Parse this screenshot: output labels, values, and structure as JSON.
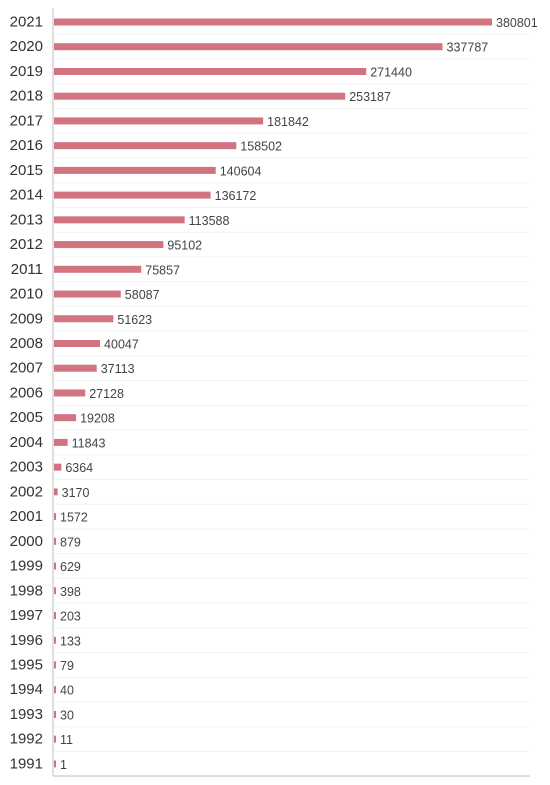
{
  "chart_data": {
    "type": "bar",
    "orientation": "horizontal",
    "categories": [
      "2021",
      "2020",
      "2019",
      "2018",
      "2017",
      "2016",
      "2015",
      "2014",
      "2013",
      "2012",
      "2011",
      "2010",
      "2009",
      "2008",
      "2007",
      "2006",
      "2005",
      "2004",
      "2003",
      "2002",
      "2001",
      "2000",
      "1999",
      "1998",
      "1997",
      "1996",
      "1995",
      "1994",
      "1993",
      "1992",
      "1991"
    ],
    "values": [
      380801,
      337787,
      271440,
      253187,
      181842,
      158502,
      140604,
      136172,
      113588,
      95102,
      75857,
      58087,
      51623,
      40047,
      37113,
      27128,
      19208,
      11843,
      6364,
      3170,
      1572,
      879,
      629,
      398,
      203,
      133,
      79,
      40,
      30,
      11,
      1
    ],
    "data_labels": [
      "380801",
      "337787",
      "271440",
      "253187",
      "181842",
      "158502",
      "140604",
      "136172",
      "113588",
      "95102",
      "75857",
      "58087",
      "51623",
      "40047",
      "37113",
      "27128",
      "19208",
      "11843",
      "6364",
      "3170",
      "1572",
      "879",
      "629",
      "398",
      "203",
      "133",
      "79",
      "40",
      "30",
      "11",
      "1"
    ],
    "title": "",
    "xlabel": "",
    "ylabel": "",
    "xlim": [
      0,
      410000
    ],
    "grid": true,
    "legend": "none",
    "bar_color": "#d17480"
  }
}
